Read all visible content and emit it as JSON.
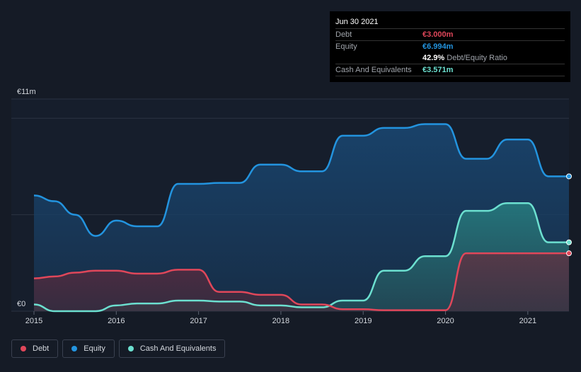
{
  "tooltip": {
    "date": "Jun 30 2021",
    "debt_label": "Debt",
    "debt_value": "€3.000m",
    "equity_label": "Equity",
    "equity_value": "€6.994m",
    "ratio_value": "42.9%",
    "ratio_label": "Debt/Equity Ratio",
    "cash_label": "Cash And Equivalents",
    "cash_value": "€3.571m"
  },
  "legend": [
    {
      "label": "Debt",
      "color": "#e0475a"
    },
    {
      "label": "Equity",
      "color": "#2394df"
    },
    {
      "label": "Cash And Equivalents",
      "color": "#6ce0d0"
    }
  ],
  "colors": {
    "debt": "#e0475a",
    "equity": "#2394df",
    "cash": "#6ce0d0"
  },
  "chart_data": {
    "type": "area",
    "title": "",
    "y_top_label": "€11m",
    "y_bottom_label": "€0",
    "ylim": [
      0,
      11
    ],
    "xlim": [
      2015.0,
      2021.5
    ],
    "x_ticks": [
      2015,
      2016,
      2017,
      2018,
      2019,
      2020,
      2021
    ],
    "x_tick_labels": [
      "2015",
      "2016",
      "2017",
      "2018",
      "2019",
      "2020",
      "2021"
    ],
    "series": [
      {
        "name": "Equity",
        "key": "equity",
        "x": [
          2015.0,
          2015.25,
          2015.5,
          2015.75,
          2016.0,
          2016.25,
          2016.5,
          2016.75,
          2017.0,
          2017.25,
          2017.5,
          2017.75,
          2018.0,
          2018.25,
          2018.5,
          2018.75,
          2019.0,
          2019.25,
          2019.5,
          2019.75,
          2020.0,
          2020.25,
          2020.5,
          2020.75,
          2021.0,
          2021.25,
          2021.5
        ],
        "values": [
          6.0,
          5.7,
          5.0,
          3.9,
          4.7,
          4.4,
          4.4,
          6.6,
          6.6,
          6.65,
          6.65,
          7.6,
          7.6,
          7.25,
          7.25,
          9.1,
          9.1,
          9.5,
          9.5,
          9.7,
          9.7,
          7.9,
          7.9,
          8.9,
          8.9,
          6.99,
          6.99
        ]
      },
      {
        "name": "Cash And Equivalents",
        "key": "cash",
        "x": [
          2015.0,
          2015.25,
          2015.5,
          2015.75,
          2016.0,
          2016.25,
          2016.5,
          2016.75,
          2017.0,
          2017.25,
          2017.5,
          2017.75,
          2018.0,
          2018.25,
          2018.5,
          2018.75,
          2019.0,
          2019.25,
          2019.5,
          2019.75,
          2020.0,
          2020.25,
          2020.5,
          2020.75,
          2021.0,
          2021.25,
          2021.5
        ],
        "values": [
          0.35,
          0.0,
          0.0,
          0.0,
          0.3,
          0.4,
          0.4,
          0.55,
          0.55,
          0.5,
          0.5,
          0.3,
          0.3,
          0.2,
          0.2,
          0.55,
          0.55,
          2.1,
          2.1,
          2.85,
          2.85,
          5.2,
          5.2,
          5.6,
          5.6,
          3.57,
          3.57
        ]
      },
      {
        "name": "Debt",
        "key": "debt",
        "x": [
          2015.0,
          2015.25,
          2015.5,
          2015.75,
          2016.0,
          2016.25,
          2016.5,
          2016.75,
          2017.0,
          2017.25,
          2017.5,
          2017.75,
          2018.0,
          2018.25,
          2018.5,
          2018.75,
          2019.0,
          2019.25,
          2019.5,
          2019.75,
          2020.0,
          2020.25,
          2020.5,
          2020.75,
          2021.0,
          2021.25,
          2021.5
        ],
        "values": [
          1.7,
          1.8,
          2.0,
          2.1,
          2.1,
          1.95,
          1.95,
          2.15,
          2.15,
          1.0,
          1.0,
          0.85,
          0.85,
          0.35,
          0.35,
          0.1,
          0.1,
          0.05,
          0.05,
          0.05,
          0.05,
          3.0,
          3.0,
          3.0,
          3.0,
          3.0,
          3.0
        ]
      }
    ]
  }
}
